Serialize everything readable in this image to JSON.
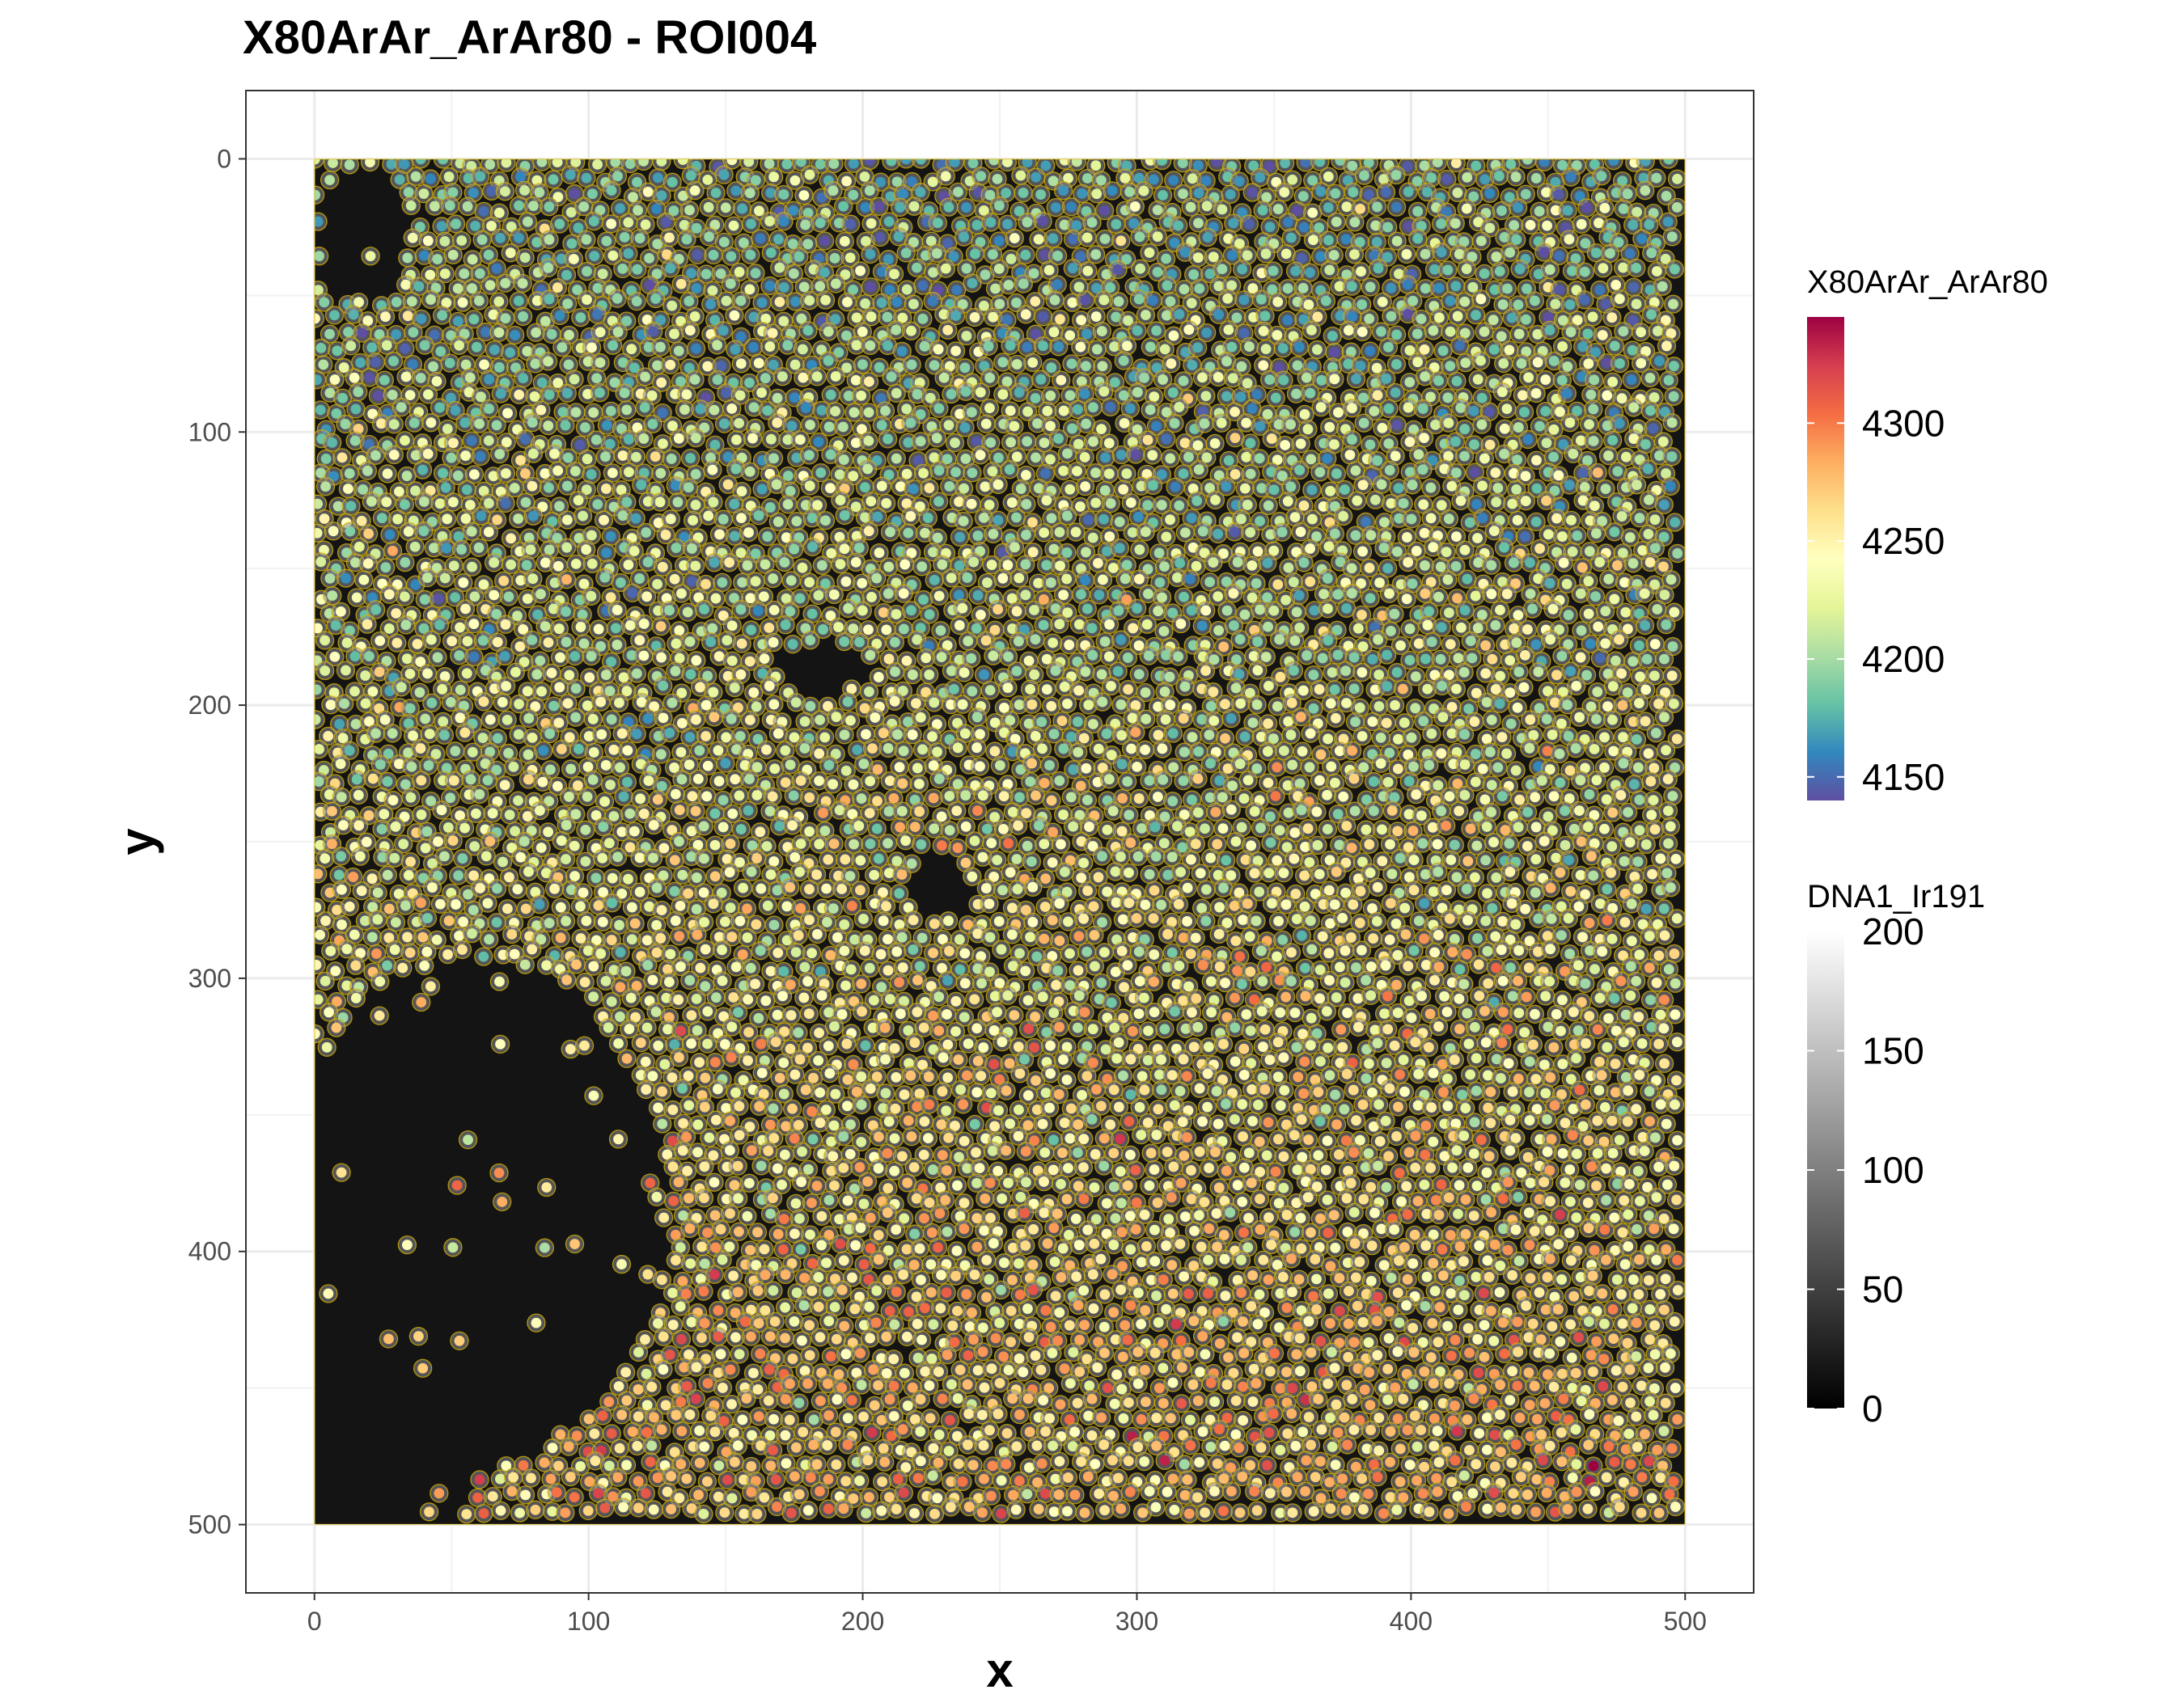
{
  "chart_data": {
    "type": "scatter",
    "title": "X80ArAr_ArAr80 - ROI004",
    "xlabel": "x",
    "ylabel": "y",
    "xlim": [
      -25,
      525
    ],
    "ylim": [
      -25,
      525
    ],
    "y_reversed": true,
    "x_ticks": [
      0,
      100,
      200,
      300,
      400,
      500
    ],
    "y_ticks": [
      0,
      100,
      200,
      300,
      400,
      500
    ],
    "x_tick_labels": [
      "0",
      "100",
      "200",
      "300",
      "400",
      "500"
    ],
    "y_tick_labels": [
      "0",
      "100",
      "200",
      "300",
      "400",
      "500"
    ],
    "grid": true,
    "image_extent": {
      "x": [
        0,
        500
      ],
      "y": [
        0,
        500
      ]
    },
    "background_image_channel": "DNA1_Ir191",
    "color_channel": "X80ArAr_ArAr80",
    "cell_outline_color": "#e6c200",
    "legend_position": "right",
    "legends": [
      {
        "title": "X80ArAr_ArAr80",
        "range": [
          4140,
          4345
        ],
        "ticks": [
          4150,
          4200,
          4250,
          4300
        ],
        "tick_labels": [
          "4150",
          "4200",
          "4250",
          "4300"
        ],
        "colors": [
          "#5e4fa2",
          "#3288bd",
          "#66c2a5",
          "#abdda4",
          "#e6f598",
          "#ffffbf",
          "#fee08b",
          "#fdae61",
          "#f46d43",
          "#d53e4f",
          "#9e0142"
        ]
      },
      {
        "title": "DNA1_Ir191",
        "range": [
          0,
          200
        ],
        "ticks": [
          0,
          50,
          100,
          150,
          200
        ],
        "tick_labels": [
          "0",
          "50",
          "100",
          "150",
          "200"
        ],
        "colors": [
          "#000000",
          "#ffffff"
        ]
      }
    ],
    "dark_regions": [
      {
        "label": "large tissue-free region",
        "x": [
          0,
          130
        ],
        "y": [
          290,
          480
        ]
      },
      {
        "label": "small hole",
        "x": [
          170,
          200
        ],
        "y": [
          175,
          195
        ]
      },
      {
        "label": "small hole",
        "x": [
          215,
          240
        ],
        "y": [
          255,
          275
        ]
      }
    ],
    "notes": "Dense point cloud of cell centroids (~6000 cells) over the image; per-cell mean intensity trends from ~4150-4220 (blue/green) near y=0 to ~4280-4340 (orange/red) near y=500."
  }
}
